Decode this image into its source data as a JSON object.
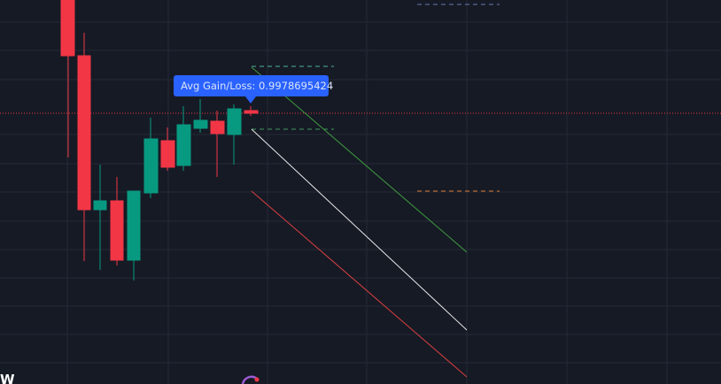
{
  "tooltip": {
    "text": "Avg Gain/Loss: 0.9978695424"
  },
  "corner_label": "W"
}
